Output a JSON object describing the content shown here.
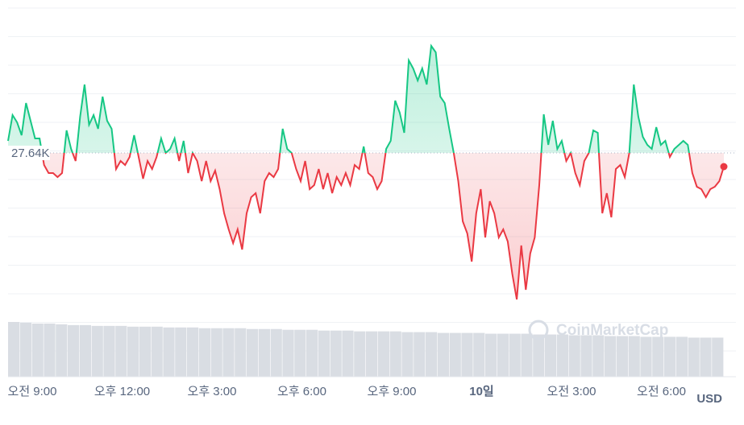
{
  "chart_data": {
    "type": "line",
    "baseline": {
      "value": 27640,
      "label": "27.64K"
    },
    "values": [
      27655,
      27687,
      27678,
      27662,
      27702,
      27680,
      27658,
      27658,
      27625,
      27615,
      27615,
      27610,
      27615,
      27668,
      27645,
      27630,
      27685,
      27725,
      27675,
      27687,
      27670,
      27710,
      27680,
      27670,
      27620,
      27630,
      27625,
      27635,
      27662,
      27635,
      27608,
      27630,
      27620,
      27635,
      27658,
      27640,
      27645,
      27658,
      27630,
      27655,
      27615,
      27640,
      27630,
      27605,
      27630,
      27605,
      27618,
      27595,
      27565,
      27545,
      27528,
      27545,
      27520,
      27565,
      27585,
      27590,
      27565,
      27605,
      27615,
      27610,
      27620,
      27670,
      27645,
      27640,
      27620,
      27605,
      27630,
      27595,
      27600,
      27620,
      27595,
      27615,
      27590,
      27610,
      27600,
      27615,
      27600,
      27625,
      27620,
      27648,
      27615,
      27610,
      27595,
      27605,
      27645,
      27655,
      27705,
      27690,
      27665,
      27755,
      27745,
      27730,
      27745,
      27725,
      27773,
      27765,
      27710,
      27702,
      27670,
      27640,
      27605,
      27555,
      27540,
      27505,
      27565,
      27595,
      27535,
      27580,
      27565,
      27535,
      27545,
      27530,
      27490,
      27458,
      27525,
      27470,
      27515,
      27535,
      27600,
      27688,
      27650,
      27680,
      27645,
      27655,
      27630,
      27640,
      27615,
      27600,
      27630,
      27640,
      27668,
      27665,
      27565,
      27590,
      27560,
      27620,
      27625,
      27610,
      27640,
      27725,
      27685,
      27660,
      27650,
      27645,
      27672,
      27650,
      27655,
      27635,
      27645,
      27650,
      27655,
      27650,
      27615,
      27598,
      27595,
      27585,
      27595,
      27598,
      27605,
      27623
    ],
    "color_up": "#16c784",
    "color_down": "#ea3943",
    "ylim": [
      27430,
      27820
    ],
    "volume": {
      "color": "#d9dde3",
      "ylim": [
        0,
        70
      ],
      "values": [
        70,
        69,
        68,
        68,
        67,
        66,
        66,
        65,
        65,
        65,
        64,
        64,
        64,
        63,
        63,
        63,
        62,
        62,
        62,
        62,
        61,
        61,
        61,
        60,
        60,
        60,
        59,
        59,
        59,
        58,
        58,
        58,
        58,
        57,
        57,
        57,
        56,
        56,
        56,
        56,
        55,
        55,
        55,
        55,
        54,
        54,
        54,
        53,
        53,
        53,
        52,
        52,
        52,
        51,
        51,
        51,
        51,
        50,
        50,
        50
      ]
    },
    "x_labels": [
      "오전 9:00",
      "오후 12:00",
      "오후 3:00",
      "오후 6:00",
      "오후 9:00",
      "10일",
      "오전 3:00",
      "오전 6:00"
    ],
    "currency": "USD",
    "watermark": "CoinMarketCap",
    "grid": true
  }
}
